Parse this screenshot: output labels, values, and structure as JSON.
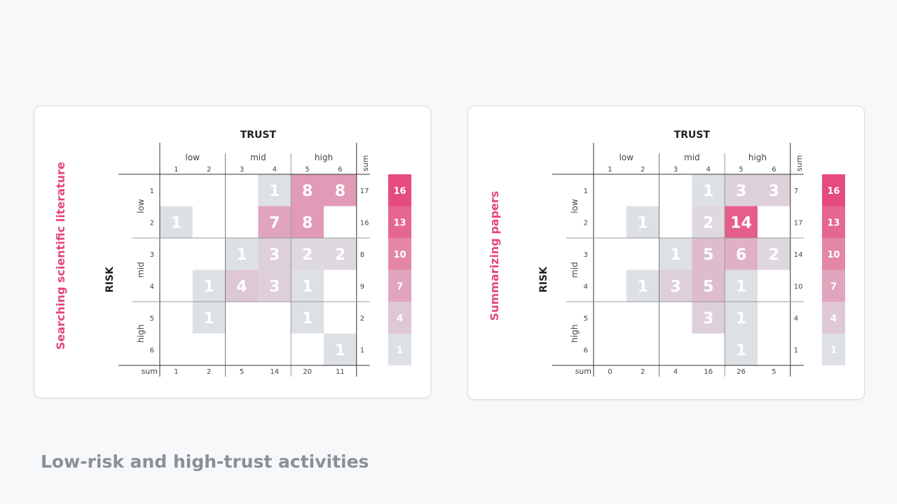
{
  "footer_title": "Low-risk and high-trust activities",
  "chart_data": [
    {
      "type": "heatmap",
      "title": "Searching scientific literature",
      "xlabel": "TRUST",
      "ylabel": "RISK",
      "x_groups": [
        "low",
        "mid",
        "high"
      ],
      "y_groups": [
        "low",
        "mid",
        "high"
      ],
      "x_ticks": [
        "1",
        "2",
        "3",
        "4",
        "5",
        "6"
      ],
      "y_ticks": [
        "1",
        "2",
        "3",
        "4",
        "5",
        "6"
      ],
      "sum_label": "sum",
      "values": [
        [
          null,
          null,
          null,
          1,
          8,
          8
        ],
        [
          1,
          null,
          null,
          7,
          8,
          null
        ],
        [
          null,
          null,
          1,
          3,
          2,
          2
        ],
        [
          null,
          1,
          4,
          3,
          1,
          null
        ],
        [
          null,
          1,
          null,
          null,
          1,
          null
        ],
        [
          null,
          null,
          null,
          null,
          null,
          1
        ]
      ],
      "row_sums": [
        17,
        16,
        8,
        9,
        2,
        1
      ],
      "col_sums": [
        1,
        2,
        5,
        14,
        20,
        11
      ],
      "legend": {
        "values": [
          16,
          13,
          10,
          7,
          4,
          1
        ],
        "colors": [
          "#e54a80",
          "#e5668f",
          "#e386a8",
          "#e0a5bd",
          "#dfc8d5",
          "#dde0e4"
        ]
      }
    },
    {
      "type": "heatmap",
      "title": "Summarizing papers",
      "xlabel": "TRUST",
      "ylabel": "RISK",
      "x_groups": [
        "low",
        "mid",
        "high"
      ],
      "y_groups": [
        "low",
        "mid",
        "high"
      ],
      "x_ticks": [
        "1",
        "2",
        "3",
        "4",
        "5",
        "6"
      ],
      "y_ticks": [
        "1",
        "2",
        "3",
        "4",
        "5",
        "6"
      ],
      "sum_label": "sum",
      "values": [
        [
          null,
          null,
          null,
          1,
          3,
          3
        ],
        [
          null,
          1,
          null,
          2,
          14,
          null
        ],
        [
          null,
          null,
          1,
          5,
          6,
          2
        ],
        [
          null,
          1,
          3,
          5,
          1,
          null
        ],
        [
          null,
          null,
          null,
          3,
          1,
          null
        ],
        [
          null,
          null,
          null,
          null,
          1,
          null
        ]
      ],
      "row_sums": [
        7,
        17,
        14,
        10,
        4,
        1
      ],
      "col_sums": [
        0,
        2,
        4,
        16,
        26,
        5
      ],
      "legend": {
        "values": [
          16,
          13,
          10,
          7,
          4,
          1
        ],
        "colors": [
          "#e54a80",
          "#e5668f",
          "#e386a8",
          "#e0a5bd",
          "#dfc8d5",
          "#dde0e4"
        ]
      }
    }
  ]
}
